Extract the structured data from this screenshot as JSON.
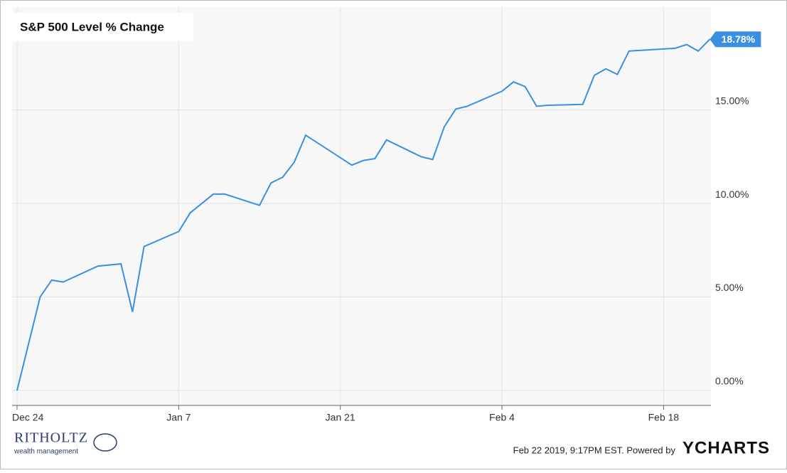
{
  "chart_data": {
    "type": "line",
    "title": "S&P 500 Level % Change",
    "x": [
      0,
      2,
      3,
      4,
      7,
      9,
      10,
      11,
      14,
      15,
      16,
      17,
      18,
      21,
      22,
      23,
      24,
      25,
      29,
      30,
      31,
      32,
      35,
      36,
      37,
      38,
      39,
      42,
      43,
      44,
      45,
      46,
      49,
      50,
      51,
      52,
      53,
      57,
      58,
      59,
      60
    ],
    "series": [
      {
        "name": "S&P 500 Level % Change",
        "color": "#3a8fe0",
        "values": [
          0,
          5.0,
          5.9,
          5.8,
          6.65,
          6.77,
          4.2,
          7.7,
          8.5,
          9.5,
          10.0,
          10.5,
          10.5,
          9.9,
          11.1,
          11.4,
          12.2,
          13.65,
          12.05,
          12.3,
          12.4,
          13.4,
          12.5,
          12.35,
          14.1,
          15.05,
          15.2,
          16.0,
          16.5,
          16.25,
          15.2,
          15.25,
          15.3,
          16.85,
          17.2,
          16.9,
          18.15,
          18.3,
          18.5,
          18.15,
          18.78
        ],
        "value_labels": [
          null,
          null,
          null,
          null,
          null,
          null,
          null,
          null,
          null,
          null,
          null,
          null,
          null,
          null,
          null,
          null,
          null,
          null,
          null,
          null,
          null,
          null,
          null,
          null,
          null,
          null,
          null,
          null,
          null,
          null,
          null,
          null,
          null,
          null,
          null,
          null,
          null,
          null,
          null,
          null,
          "18.78%"
        ]
      }
    ],
    "xlim": [
      -0.43,
      60.1
    ],
    "xticks": [
      {
        "value": 0,
        "label": "Dec 24"
      },
      {
        "value": 14,
        "label": "Jan 7"
      },
      {
        "value": 28,
        "label": "Jan 21"
      },
      {
        "value": 42,
        "label": "Feb 4"
      },
      {
        "value": 56,
        "label": "Feb 18"
      }
    ],
    "ylim": [
      -0.8,
      20.5
    ],
    "yticks": [
      {
        "value": 0,
        "label": "0.00%"
      },
      {
        "value": 5,
        "label": "5.00%"
      },
      {
        "value": 10,
        "label": "10.00%"
      },
      {
        "value": 15,
        "label": "15.00%"
      }
    ],
    "grid": true,
    "logo_text": "RITHOLTZ",
    "logo_subtext": "wealth management",
    "timestamp": "Feb 22 2019, 9:17PM EST.  Powered by",
    "brand": "YCHARTS"
  }
}
